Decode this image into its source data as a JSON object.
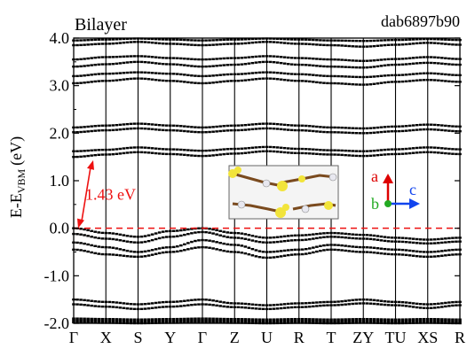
{
  "chart_data": {
    "type": "line",
    "title": "Bilayer",
    "id_label": "dab6897b90",
    "ylabel_main": "E-E",
    "ylabel_sub": "VBM",
    "ylabel_unit": "(eV)",
    "ylim": [
      -2.0,
      4.0
    ],
    "yticks": [
      "-2.0",
      "-1.0",
      "0.0",
      "1.0",
      "2.0",
      "3.0",
      "4.0"
    ],
    "ytick_values": [
      -2.0,
      -1.0,
      0.0,
      1.0,
      2.0,
      3.0,
      4.0
    ],
    "kpoints": [
      "Γ",
      "X",
      "S",
      "Y",
      "Γ",
      "Z",
      "U",
      "R",
      "T",
      "ZY",
      "TU",
      "XS",
      "R"
    ],
    "kpoint_positions": [
      0,
      1,
      2,
      3,
      4,
      5,
      6,
      7,
      8,
      9,
      10,
      11,
      12
    ],
    "vbm_level": 0.0,
    "gap_annotation": "1.43 eV",
    "gap_from": 0.0,
    "gap_to": 1.43,
    "gap_color": "#ee1111",
    "axes_labels": {
      "a": "a",
      "b": "b",
      "c": "c"
    },
    "axes_colors": {
      "a": "#dd0000",
      "b": "#22aa22",
      "c": "#1144ee"
    },
    "band_color": "#000000",
    "series": [
      {
        "values": [
          -1.9,
          -1.91,
          -1.92,
          -1.91,
          -1.9,
          -1.91,
          -1.92,
          -1.91,
          -1.92,
          -1.91,
          -1.92,
          -1.91,
          -1.92
        ]
      },
      {
        "values": [
          -1.94,
          -1.95,
          -1.96,
          -1.95,
          -1.94,
          -1.95,
          -1.96,
          -1.95,
          -1.96,
          -1.95,
          -1.96,
          -1.95,
          -1.96
        ]
      },
      {
        "values": [
          -1.98,
          -1.99,
          -2.0,
          -1.99,
          -1.98,
          -1.99,
          -2.0,
          -1.99,
          -2.0,
          -1.99,
          -2.0,
          -1.99,
          -2.0
        ]
      },
      {
        "values": [
          -1.5,
          -1.55,
          -1.6,
          -1.55,
          -1.5,
          -1.58,
          -1.62,
          -1.58,
          -1.55,
          -1.5,
          -1.55,
          -1.6,
          -1.55
        ]
      },
      {
        "values": [
          -1.6,
          -1.65,
          -1.7,
          -1.65,
          -1.6,
          -1.66,
          -1.7,
          -1.66,
          -1.62,
          -1.58,
          -1.62,
          -1.68,
          -1.62
        ]
      },
      {
        "values": [
          -0.45,
          -0.55,
          -0.6,
          -0.5,
          -0.4,
          -0.5,
          -0.62,
          -0.55,
          -0.45,
          -0.5,
          -0.55,
          -0.6,
          -0.55
        ]
      },
      {
        "values": [
          -0.3,
          -0.4,
          -0.5,
          -0.4,
          -0.25,
          -0.35,
          -0.5,
          -0.45,
          -0.35,
          -0.4,
          -0.45,
          -0.5,
          -0.45
        ]
      },
      {
        "values": [
          -0.12,
          -0.22,
          -0.3,
          -0.18,
          -0.08,
          -0.2,
          -0.3,
          -0.25,
          -0.18,
          -0.22,
          -0.28,
          -0.32,
          -0.28
        ]
      },
      {
        "values": [
          0.0,
          -0.1,
          -0.18,
          -0.06,
          0.0,
          -0.1,
          -0.2,
          -0.15,
          -0.1,
          -0.14,
          -0.2,
          -0.24,
          -0.2
        ]
      },
      {
        "values": [
          1.5,
          1.55,
          1.6,
          1.56,
          1.52,
          1.57,
          1.62,
          1.58,
          1.55,
          1.52,
          1.56,
          1.6,
          1.56
        ]
      },
      {
        "values": [
          1.62,
          1.65,
          1.7,
          1.66,
          1.63,
          1.67,
          1.71,
          1.67,
          1.64,
          1.62,
          1.66,
          1.7,
          1.66
        ]
      },
      {
        "values": [
          2.02,
          2.06,
          2.1,
          2.06,
          2.02,
          2.06,
          2.1,
          2.06,
          2.02,
          2.0,
          2.04,
          2.08,
          2.04
        ]
      },
      {
        "values": [
          2.12,
          2.16,
          2.2,
          2.16,
          2.12,
          2.16,
          2.2,
          2.16,
          2.12,
          2.1,
          2.14,
          2.18,
          2.14
        ]
      },
      {
        "values": [
          3.05,
          3.1,
          3.15,
          3.1,
          3.05,
          3.1,
          3.15,
          3.1,
          3.05,
          3.02,
          3.08,
          3.12,
          3.08
        ]
      },
      {
        "values": [
          3.2,
          3.25,
          3.28,
          3.25,
          3.2,
          3.24,
          3.28,
          3.24,
          3.2,
          3.18,
          3.22,
          3.26,
          3.22
        ]
      },
      {
        "values": [
          3.4,
          3.45,
          3.5,
          3.45,
          3.4,
          3.44,
          3.5,
          3.44,
          3.4,
          3.38,
          3.44,
          3.48,
          3.44
        ]
      },
      {
        "values": [
          3.55,
          3.6,
          3.62,
          3.58,
          3.55,
          3.58,
          3.62,
          3.58,
          3.55,
          3.52,
          3.56,
          3.6,
          3.56
        ]
      },
      {
        "values": [
          3.85,
          3.88,
          3.92,
          3.88,
          3.85,
          3.88,
          3.92,
          3.88,
          3.85,
          3.82,
          3.86,
          3.9,
          3.86
        ]
      },
      {
        "values": [
          3.95,
          3.97,
          3.99,
          3.97,
          3.95,
          3.97,
          3.99,
          3.97,
          3.95,
          3.94,
          3.96,
          3.98,
          3.96
        ]
      }
    ]
  }
}
